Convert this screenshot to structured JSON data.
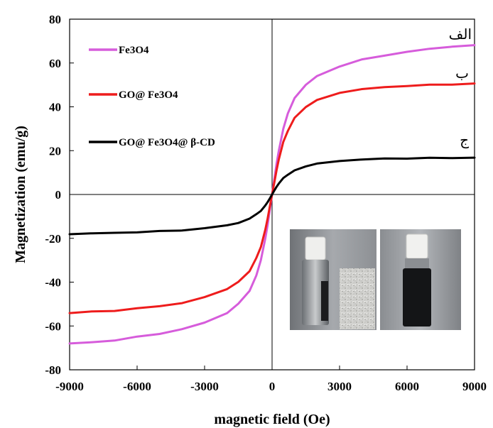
{
  "chart_data": {
    "type": "line",
    "xlabel": "magnetic field (Oe)",
    "ylabel": "Magnetization (emu/g)",
    "xlim": [
      -9000,
      9000
    ],
    "ylim": [
      -80,
      80
    ],
    "xticks": [
      "-9000",
      "-6000",
      "-3000",
      "0",
      "3000",
      "6000",
      "9000"
    ],
    "yticks": [
      "80",
      "60",
      "40",
      "20",
      "0",
      "-20",
      "-40",
      "-60",
      "-80"
    ],
    "grid": false,
    "legend_position": "top-left",
    "series": [
      {
        "name": "Fe3O4",
        "curve_label": "الف",
        "color": "#d65cdb",
        "x": [
          -9000,
          -8000,
          -7000,
          -6000,
          -5000,
          -4000,
          -3000,
          -2000,
          -1500,
          -1000,
          -700,
          -500,
          -300,
          -200,
          -100,
          0,
          100,
          200,
          300,
          500,
          700,
          1000,
          1500,
          2000,
          3000,
          4000,
          5000,
          6000,
          7000,
          8000,
          9000
        ],
        "y": [
          -68,
          -67.5,
          -66.5,
          -65,
          -63.5,
          -61.5,
          -58.5,
          -54,
          -50,
          -44,
          -37,
          -30,
          -20,
          -14,
          -7,
          0,
          7,
          14,
          20,
          30,
          37,
          44,
          50,
          54,
          58.5,
          61.5,
          63.5,
          65,
          66.5,
          67.5,
          68
        ]
      },
      {
        "name": "GO@ Fe3O4",
        "curve_label": "ب",
        "color": "#ee1c1c",
        "x": [
          -9000,
          -8000,
          -7000,
          -6000,
          -5000,
          -4000,
          -3000,
          -2000,
          -1500,
          -1000,
          -700,
          -500,
          -300,
          -200,
          -100,
          0,
          100,
          200,
          300,
          500,
          700,
          1000,
          1500,
          2000,
          3000,
          4000,
          5000,
          6000,
          7000,
          8000,
          9000
        ],
        "y": [
          -54,
          -53.5,
          -53,
          -52,
          -51,
          -49.5,
          -47,
          -43,
          -40,
          -35,
          -29,
          -24,
          -16,
          -11,
          -5.5,
          0,
          5.5,
          11,
          16,
          24,
          29,
          35,
          40,
          43,
          46.5,
          48,
          49,
          49.5,
          50,
          50.3,
          50.5
        ]
      },
      {
        "name": "GO@ Fe3O4@ β-CD",
        "curve_label": "ج",
        "color": "#000000",
        "x": [
          -9000,
          -8000,
          -7000,
          -6000,
          -5000,
          -4000,
          -3000,
          -2000,
          -1500,
          -1000,
          -700,
          -500,
          -300,
          -200,
          -100,
          0,
          100,
          200,
          300,
          500,
          700,
          1000,
          1500,
          2000,
          3000,
          4000,
          5000,
          6000,
          7000,
          8000,
          9000
        ],
        "y": [
          -18,
          -17.8,
          -17.5,
          -17.2,
          -16.8,
          -16.3,
          -15.5,
          -14,
          -13,
          -11,
          -9,
          -7.5,
          -5,
          -3.5,
          -1.8,
          0,
          1.8,
          3.5,
          5,
          7.5,
          9,
          11,
          13,
          14,
          15.3,
          16,
          16.3,
          16.5,
          16.6,
          16.7,
          16.8
        ]
      }
    ]
  }
}
